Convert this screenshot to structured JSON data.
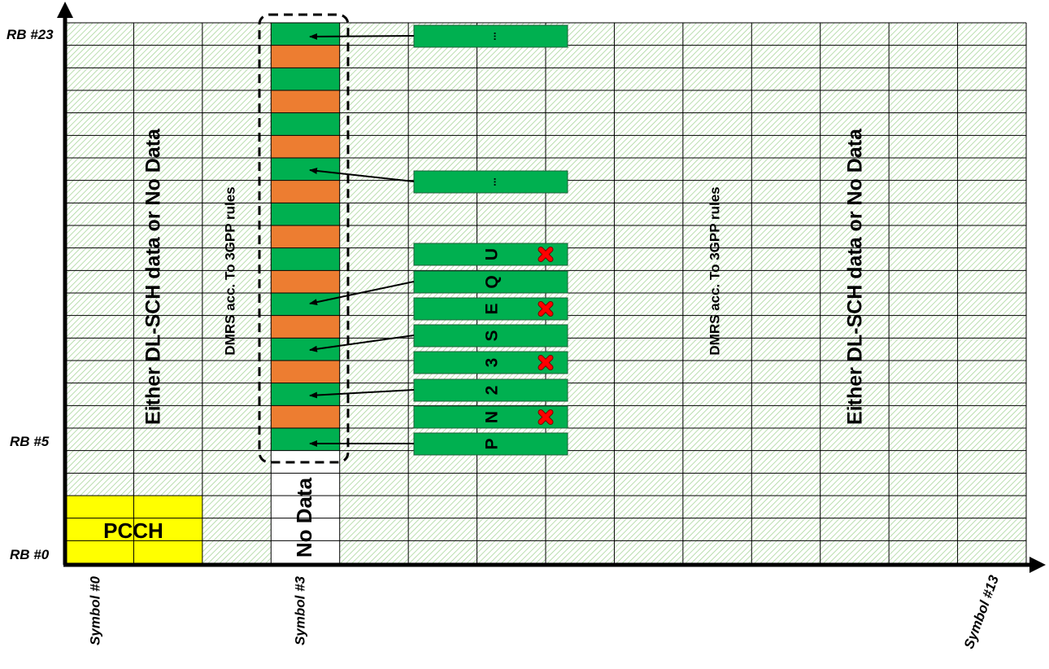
{
  "grid": {
    "symbols": 14,
    "resource_blocks": 24,
    "background_hatch_color": "#9ccf8c",
    "line_color": "#000000"
  },
  "axes": {
    "y_labels": {
      "top": "RB #23",
      "middle": "RB #5",
      "bottom": "RB #0"
    },
    "x_labels": {
      "first": "Symbol #0",
      "third": "Symbol #3",
      "last": "Symbol #13"
    }
  },
  "regions": {
    "pcch": {
      "label": "PCCH",
      "color": "#ffff00",
      "symbols": [
        0,
        1
      ],
      "rbs": [
        0,
        2
      ]
    },
    "no_data": {
      "label": "No Data",
      "color": "#ffffff",
      "symbol": 3,
      "rbs": [
        0,
        4
      ]
    },
    "dmrs_column": {
      "symbol": 3,
      "rbs": [
        5,
        23
      ],
      "green": "#00b050",
      "orange": "#ed7d31",
      "pattern_start": "green"
    }
  },
  "texts": {
    "left_big": "Either DL-SCH data or No Data",
    "left_dmrs": "DMRS acc. To 3GPP rules",
    "right_dmrs": "DMRS acc. To 3GPP rules",
    "right_big": "Either DL-SCH data or No Data"
  },
  "sequence": {
    "color": "#00b050",
    "x_mark_color": "#ff0000",
    "items": [
      {
        "label": "...",
        "crossed": false
      },
      {
        "label": "...",
        "crossed": false
      },
      {
        "label": "U",
        "crossed": true
      },
      {
        "label": "Q",
        "crossed": false
      },
      {
        "label": "E",
        "crossed": true
      },
      {
        "label": "S",
        "crossed": false
      },
      {
        "label": "3",
        "crossed": true
      },
      {
        "label": "2",
        "crossed": false
      },
      {
        "label": "N",
        "crossed": true
      },
      {
        "label": "P",
        "crossed": false
      }
    ]
  }
}
